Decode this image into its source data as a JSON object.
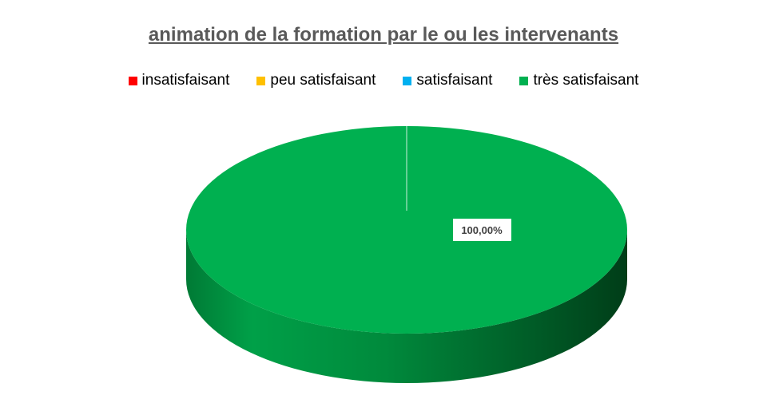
{
  "chart_data": {
    "type": "pie",
    "title": "animation de la formation par le ou les intervenants",
    "categories": [
      "insatisfaisant",
      "peu satisfaisant",
      "satisfaisant",
      "très satisfaisant"
    ],
    "values": [
      0,
      0,
      0,
      100
    ],
    "colors": [
      "#ff0000",
      "#ffc000",
      "#00b0f0",
      "#00b050"
    ],
    "data_labels": [
      "",
      "",
      "",
      "100,00%"
    ],
    "legend_position": "top",
    "style": "3d"
  }
}
